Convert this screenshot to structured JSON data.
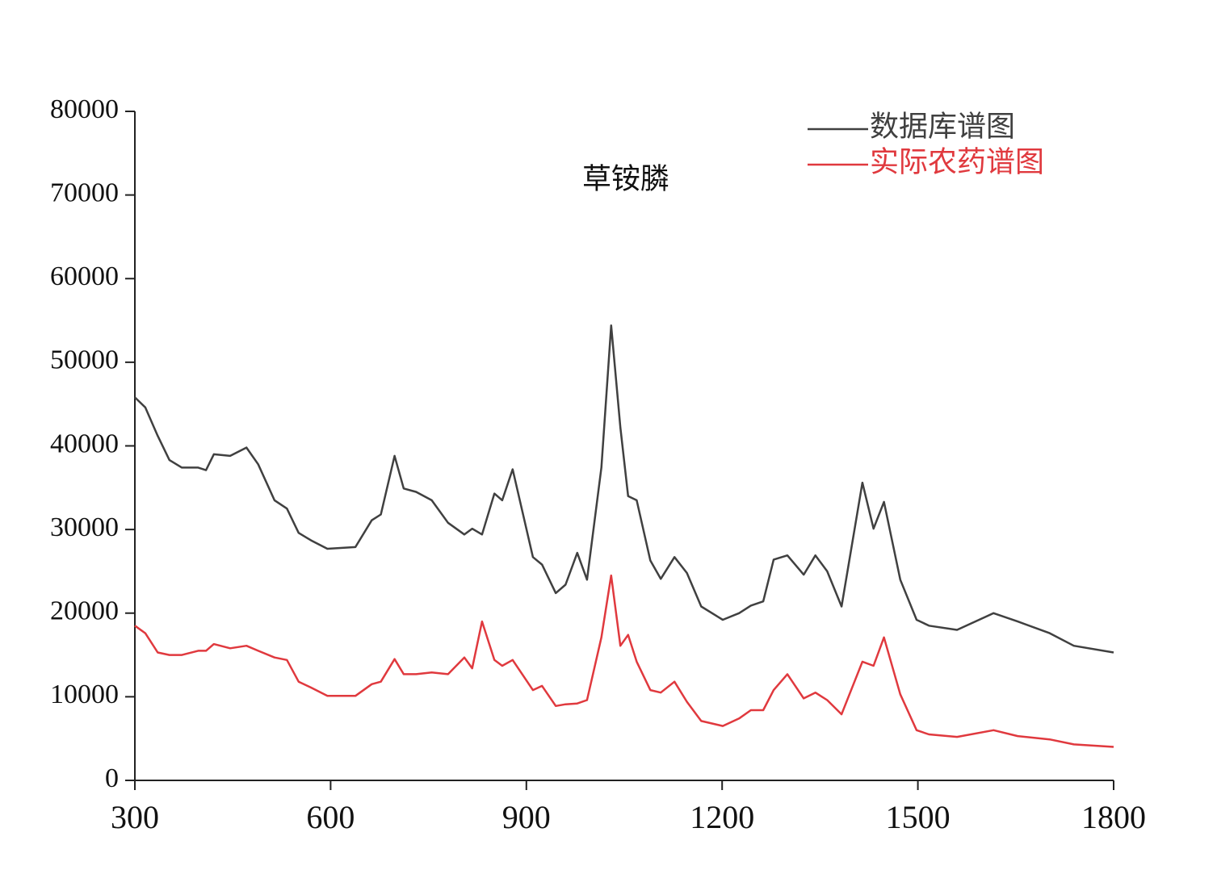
{
  "chart_data": {
    "type": "line",
    "title": "草铵膦",
    "x": [
      300,
      316,
      335,
      353,
      372,
      397,
      409,
      421,
      446,
      471,
      489,
      514,
      533,
      551,
      570,
      595,
      638,
      663,
      677,
      698,
      712,
      731,
      755,
      780,
      805,
      817,
      832,
      851,
      863,
      879,
      910,
      924,
      945,
      960,
      978,
      993,
      1015,
      1030,
      1044,
      1056,
      1069,
      1090,
      1106,
      1127,
      1146,
      1168,
      1201,
      1226,
      1244,
      1263,
      1279,
      1300,
      1325,
      1343,
      1361,
      1383,
      1415,
      1432,
      1448,
      1473,
      1498,
      1517,
      1560,
      1616,
      1653,
      1702,
      1739,
      1800
    ],
    "series": [
      {
        "name": "数据库谱图",
        "color": "#404040",
        "values": [
          45800,
          44600,
          41200,
          38300,
          37400,
          37400,
          37100,
          39000,
          38800,
          39800,
          37800,
          33500,
          32500,
          29600,
          28700,
          27700,
          27900,
          31100,
          31800,
          38800,
          34900,
          34500,
          33500,
          30800,
          29400,
          30100,
          29400,
          34300,
          33500,
          37200,
          26700,
          25800,
          22400,
          23400,
          27200,
          24000,
          37400,
          54400,
          42200,
          34000,
          33500,
          26300,
          24100,
          26700,
          24800,
          20800,
          19200,
          20000,
          20900,
          21400,
          26400,
          26900,
          24600,
          26900,
          25000,
          20800,
          35600,
          30100,
          33300,
          24000,
          19200,
          18500,
          18000,
          20000,
          19000,
          17600,
          16100,
          15300
        ]
      },
      {
        "name": "实际农药谱图",
        "color": "#e0393e",
        "values": [
          18500,
          17600,
          15300,
          15000,
          15000,
          15500,
          15500,
          16300,
          15800,
          16100,
          15500,
          14700,
          14400,
          11800,
          11100,
          10100,
          10100,
          11500,
          11800,
          14500,
          12700,
          12700,
          12900,
          12700,
          14700,
          13400,
          19000,
          14400,
          13700,
          14400,
          10800,
          11300,
          8900,
          9100,
          9200,
          9600,
          17100,
          24500,
          16100,
          17400,
          14200,
          10800,
          10500,
          11800,
          9400,
          7100,
          6500,
          7400,
          8400,
          8400,
          10800,
          12700,
          9800,
          10500,
          9600,
          7900,
          14200,
          13700,
          17100,
          10300,
          6000,
          5500,
          5200,
          6000,
          5300,
          4900,
          4300,
          4000
        ]
      }
    ],
    "xlim": [
      300,
      1800
    ],
    "xticks": [
      300,
      600,
      900,
      1200,
      1500,
      1800
    ],
    "ylim": [
      0,
      80000
    ],
    "yticks": [
      0,
      10000,
      20000,
      30000,
      40000,
      50000,
      60000,
      70000,
      80000
    ],
    "legend": "upper right"
  }
}
